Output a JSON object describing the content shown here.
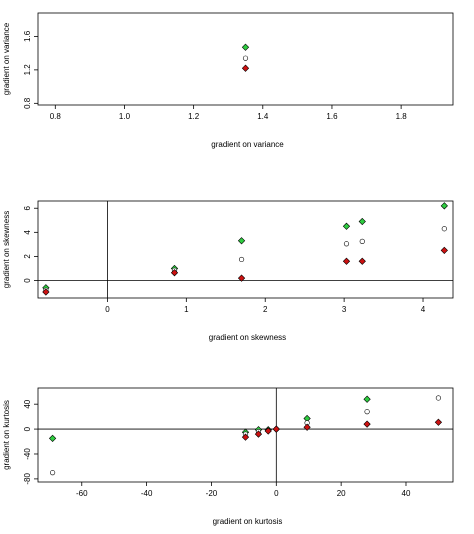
{
  "chart_data": [
    {
      "type": "scatter",
      "xlabel": "gradient on variance",
      "ylabel": "gradient on variance",
      "xlim": [
        0.75,
        1.95
      ],
      "ylim": [
        0.78,
        1.88
      ],
      "xticks": [
        0.8,
        1.0,
        1.2,
        1.4,
        1.6,
        1.8
      ],
      "yticks": [
        0.8,
        1.2,
        1.6
      ],
      "xtick_labels": [
        "0.8",
        "1.0",
        "1.2",
        "1.4",
        "1.6",
        "1.8"
      ],
      "ytick_labels": [
        "0.8",
        "1.2",
        "1.6"
      ],
      "reference_lines": [],
      "series": [
        {
          "marker": "diamond",
          "fill": "#2ecc40",
          "points": [
            [
              1.35,
              1.47
            ]
          ]
        },
        {
          "marker": "circle",
          "fill": "#ffffff",
          "points": [
            [
              1.35,
              1.34
            ]
          ]
        },
        {
          "marker": "diamond",
          "fill": "#cc1111",
          "points": [
            [
              1.35,
              1.22
            ]
          ]
        }
      ]
    },
    {
      "type": "scatter",
      "xlabel": "gradient on skewness",
      "ylabel": "gradient on skewness",
      "xlim": [
        -0.88,
        4.38
      ],
      "ylim": [
        -1.45,
        6.6
      ],
      "xticks": [
        0,
        1,
        2,
        3,
        4
      ],
      "yticks": [
        0,
        2,
        4,
        6
      ],
      "xtick_labels": [
        "0",
        "1",
        "2",
        "3",
        "4"
      ],
      "ytick_labels": [
        "0",
        "2",
        "4",
        "6"
      ],
      "reference_lines": [
        {
          "axis": "x",
          "value": 0
        },
        {
          "axis": "y",
          "value": 0
        }
      ],
      "series": [
        {
          "marker": "diamond",
          "fill": "#2ecc40",
          "points": [
            [
              -0.78,
              -0.6
            ],
            [
              0.85,
              1.0
            ],
            [
              1.7,
              3.3
            ],
            [
              3.03,
              4.5
            ],
            [
              3.23,
              4.9
            ],
            [
              4.27,
              6.2
            ]
          ]
        },
        {
          "marker": "circle",
          "fill": "#ffffff",
          "points": [
            [
              -0.78,
              -0.8
            ],
            [
              0.85,
              0.85
            ],
            [
              1.7,
              1.75
            ],
            [
              3.03,
              3.05
            ],
            [
              3.23,
              3.25
            ],
            [
              4.27,
              4.3
            ]
          ]
        },
        {
          "marker": "diamond",
          "fill": "#cc1111",
          "points": [
            [
              -0.78,
              -0.95
            ],
            [
              0.85,
              0.65
            ],
            [
              1.7,
              0.2
            ],
            [
              3.03,
              1.6
            ],
            [
              3.23,
              1.6
            ],
            [
              4.27,
              2.5
            ]
          ]
        }
      ]
    },
    {
      "type": "scatter",
      "xlabel": "gradient on kurtosis",
      "ylabel": "gradient on kurtosis",
      "xlim": [
        -73.5,
        54.5
      ],
      "ylim": [
        -85,
        66
      ],
      "xticks": [
        -60,
        -40,
        -20,
        0,
        20,
        40
      ],
      "yticks": [
        -80,
        -40,
        0,
        40
      ],
      "xtick_labels": [
        "-60",
        "-40",
        "-20",
        "0",
        "20",
        "40"
      ],
      "ytick_labels": [
        "-80",
        "-40",
        "0",
        "40"
      ],
      "reference_lines": [
        {
          "axis": "x",
          "value": 0
        },
        {
          "axis": "y",
          "value": 0
        }
      ],
      "series": [
        {
          "marker": "diamond",
          "fill": "#2ecc40",
          "points": [
            [
              -69,
              -15
            ],
            [
              -9.5,
              -5
            ],
            [
              -5.5,
              -1
            ],
            [
              -2.5,
              -1
            ],
            [
              0,
              0
            ],
            [
              9.5,
              17
            ],
            [
              28,
              48
            ]
          ]
        },
        {
          "marker": "circle",
          "fill": "#ffffff",
          "points": [
            [
              -69,
              -70
            ],
            [
              -9.5,
              -8
            ],
            [
              -5.5,
              -4
            ],
            [
              -2.5,
              -2
            ],
            [
              0,
              0
            ],
            [
              9.5,
              10
            ],
            [
              28,
              28
            ],
            [
              50,
              50
            ]
          ]
        },
        {
          "marker": "diamond",
          "fill": "#cc1111",
          "points": [
            [
              -9.5,
              -13
            ],
            [
              -5.5,
              -8
            ],
            [
              -2.5,
              -3
            ],
            [
              0,
              0
            ],
            [
              9.5,
              3
            ],
            [
              28,
              8
            ],
            [
              50,
              11
            ]
          ]
        }
      ]
    }
  ]
}
